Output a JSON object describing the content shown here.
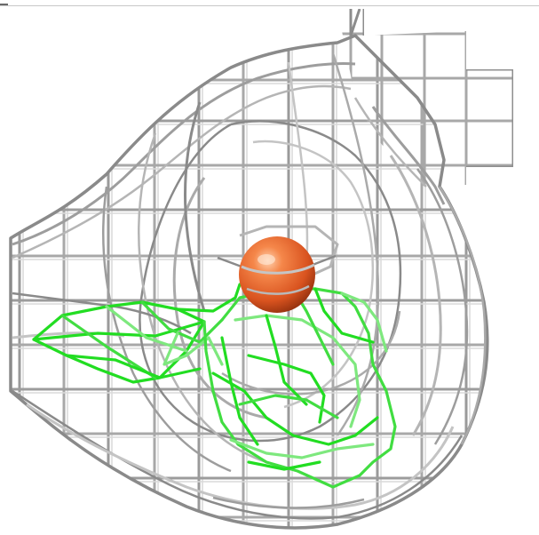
{
  "viewer": {
    "background_color": "#ffffff",
    "mesh_color": "#a8a8a8",
    "mesh_dark_color": "#5a5a5a",
    "cavity_mesh_color": "#22dd22",
    "ligand_color": "#e8622a",
    "ligand_shape": "sphere",
    "mesh_style": "wireframe"
  }
}
